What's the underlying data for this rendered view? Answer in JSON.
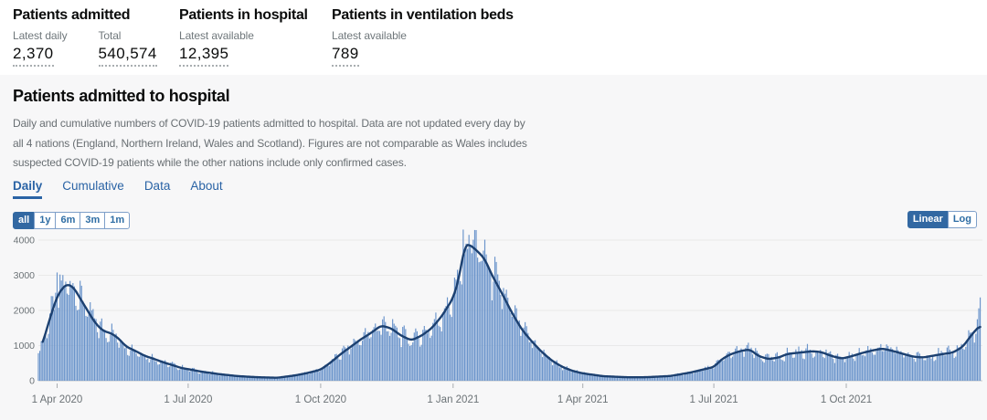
{
  "headline_stats": [
    {
      "title": "Patients admitted",
      "items": [
        {
          "label": "Latest daily",
          "value": "2,370"
        },
        {
          "label": "Total",
          "value": "540,574"
        }
      ]
    },
    {
      "title": "Patients in hospital",
      "items": [
        {
          "label": "Latest available",
          "value": "12,395"
        }
      ]
    },
    {
      "title": "Patients in ventilation beds",
      "items": [
        {
          "label": "Latest available",
          "value": "789"
        }
      ]
    }
  ],
  "card": {
    "title": "Patients admitted to hospital",
    "description": "Daily and cumulative numbers of COVID-19 patients admitted to hospital. Data are not updated every day by all 4 nations (England, Northern Ireland, Wales and Scotland). Figures are not comparable as Wales includes suspected COVID-19 patients while the other nations include only confirmed cases.",
    "tabs": [
      {
        "label": "Daily",
        "active": true
      },
      {
        "label": "Cumulative",
        "active": false
      },
      {
        "label": "Data",
        "active": false
      },
      {
        "label": "About",
        "active": false
      }
    ],
    "range_buttons": [
      {
        "label": "all",
        "active": true
      },
      {
        "label": "1y",
        "active": false
      },
      {
        "label": "6m",
        "active": false
      },
      {
        "label": "3m",
        "active": false
      },
      {
        "label": "1m",
        "active": false
      }
    ],
    "scale_buttons": [
      {
        "label": "Linear",
        "active": true
      },
      {
        "label": "Log",
        "active": false
      }
    ]
  },
  "colors": {
    "accent_blue": "#2a63a5",
    "button_active_bg": "#3268a2",
    "bar": "#6a94cb",
    "line": "#1c4070",
    "grid": "#e9e9e9",
    "baseline": "#c6c9cc",
    "tick": "#a9adb1",
    "axis_text": "#6b7276",
    "card_bg": "#f7f7f8"
  },
  "chart_data": {
    "type": "bar",
    "subtype": "daily bars with 7-day-average line overlay",
    "title": "Patients admitted to hospital (Daily, all time, linear scale)",
    "xlabel": "",
    "ylabel": "",
    "grid": true,
    "legend": "none",
    "start_date": "2020-03-19",
    "end_date": "2022-01-02",
    "days": 655,
    "ylim": [
      0,
      4400
    ],
    "y_ticks": [
      0,
      1000,
      2000,
      3000,
      4000
    ],
    "x_ticks": [
      {
        "label": "1 Apr 2020",
        "day": 13
      },
      {
        "label": "1 Jul 2020",
        "day": 104
      },
      {
        "label": "1 Oct 2020",
        "day": 196
      },
      {
        "label": "1 Jan 2021",
        "day": 288
      },
      {
        "label": "1 Apr 2021",
        "day": 378
      },
      {
        "label": "1 Jul 2021",
        "day": 469
      },
      {
        "label": "1 Oct 2021",
        "day": 561
      }
    ],
    "series": [
      {
        "name": "7-day average (dark line)",
        "keypoints_day_value": [
          [
            0,
            820
          ],
          [
            3,
            1070
          ],
          [
            6,
            1500
          ],
          [
            9,
            1900
          ],
          [
            13,
            2400
          ],
          [
            17,
            2650
          ],
          [
            20,
            2750
          ],
          [
            24,
            2670
          ],
          [
            27,
            2490
          ],
          [
            30,
            2270
          ],
          [
            34,
            2010
          ],
          [
            37,
            1800
          ],
          [
            40,
            1620
          ],
          [
            43,
            1490
          ],
          [
            46,
            1400
          ],
          [
            50,
            1360
          ],
          [
            55,
            1230
          ],
          [
            61,
            970
          ],
          [
            68,
            835
          ],
          [
            74,
            705
          ],
          [
            80,
            625
          ],
          [
            87,
            520
          ],
          [
            93,
            445
          ],
          [
            99,
            365
          ],
          [
            104,
            330
          ],
          [
            113,
            260
          ],
          [
            126,
            185
          ],
          [
            139,
            130
          ],
          [
            152,
            100
          ],
          [
            166,
            85
          ],
          [
            178,
            150
          ],
          [
            187,
            220
          ],
          [
            196,
            315
          ],
          [
            203,
            520
          ],
          [
            210,
            760
          ],
          [
            217,
            970
          ],
          [
            224,
            1180
          ],
          [
            231,
            1360
          ],
          [
            238,
            1570
          ],
          [
            245,
            1490
          ],
          [
            252,
            1280
          ],
          [
            259,
            1150
          ],
          [
            266,
            1280
          ],
          [
            273,
            1490
          ],
          [
            280,
            1830
          ],
          [
            284,
            2090
          ],
          [
            288,
            2350
          ],
          [
            292,
            2900
          ],
          [
            296,
            3850
          ],
          [
            299,
            3880
          ],
          [
            302,
            3790
          ],
          [
            306,
            3640
          ],
          [
            310,
            3460
          ],
          [
            315,
            3000
          ],
          [
            322,
            2480
          ],
          [
            329,
            1920
          ],
          [
            336,
            1440
          ],
          [
            343,
            1100
          ],
          [
            350,
            800
          ],
          [
            357,
            560
          ],
          [
            364,
            390
          ],
          [
            371,
            280
          ],
          [
            378,
            210
          ],
          [
            392,
            130
          ],
          [
            408,
            100
          ],
          [
            422,
            100
          ],
          [
            439,
            135
          ],
          [
            453,
            235
          ],
          [
            469,
            390
          ],
          [
            475,
            625
          ],
          [
            481,
            760
          ],
          [
            488,
            850
          ],
          [
            494,
            890
          ],
          [
            500,
            705
          ],
          [
            507,
            615
          ],
          [
            514,
            660
          ],
          [
            520,
            760
          ],
          [
            526,
            790
          ],
          [
            532,
            815
          ],
          [
            538,
            840
          ],
          [
            544,
            810
          ],
          [
            551,
            700
          ],
          [
            558,
            630
          ],
          [
            565,
            700
          ],
          [
            572,
            790
          ],
          [
            579,
            860
          ],
          [
            586,
            915
          ],
          [
            593,
            850
          ],
          [
            600,
            770
          ],
          [
            607,
            690
          ],
          [
            614,
            660
          ],
          [
            621,
            710
          ],
          [
            628,
            760
          ],
          [
            635,
            800
          ],
          [
            642,
            970
          ],
          [
            647,
            1250
          ],
          [
            651,
            1450
          ],
          [
            654,
            1570
          ]
        ],
        "line_start_day": 3
      },
      {
        "name": "daily admissions (light blue bars)",
        "derivation": "7-day-average keypoints interpolated daily, multiplied by weekday factor and deterministic noise; specific bars overridden",
        "weekday_factors": [
          0.84,
          1.05,
          1.1,
          1.07,
          1.01,
          0.95,
          0.87
        ],
        "noise": {
          "min_factor": 0.88,
          "spread": 0.28
        },
        "bar_overrides": {
          "13": 3080,
          "296": 3600,
          "297": 3900,
          "298": 3750,
          "299": 4150,
          "300": 3850,
          "652": 1750,
          "653": 2060,
          "654": 2370
        },
        "latest_daily": 2370
      }
    ]
  }
}
